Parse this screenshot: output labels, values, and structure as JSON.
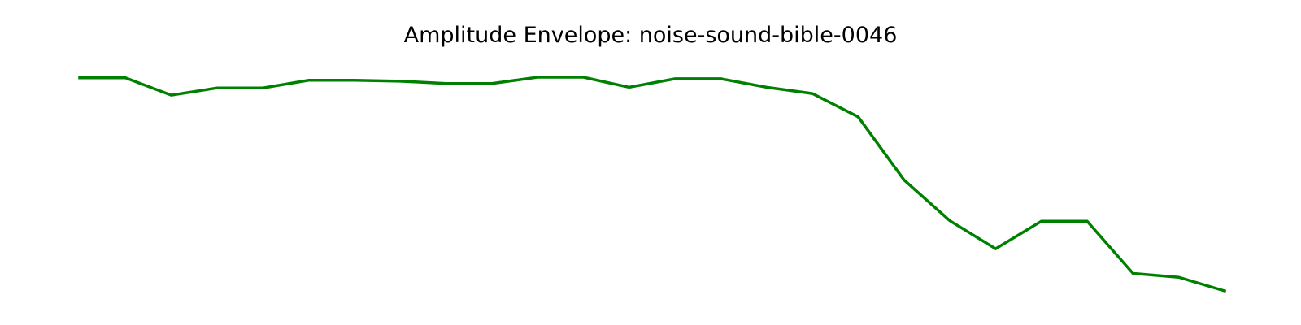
{
  "chart_data": {
    "type": "line",
    "title": "Amplitude Envelope: noise-sound-bible-0046",
    "xlabel": "",
    "ylabel": "",
    "axes_visible": false,
    "grid": false,
    "x": [
      0,
      1,
      2,
      3,
      4,
      5,
      6,
      7,
      8,
      9,
      10,
      11,
      12,
      13,
      14,
      15,
      16,
      17,
      18,
      19,
      20,
      21,
      22,
      23,
      24,
      25
    ],
    "series": [
      {
        "color": "#008000",
        "values": [
          0.95,
          0.95,
          0.873,
          0.905,
          0.905,
          0.939,
          0.939,
          0.935,
          0.925,
          0.925,
          0.953,
          0.953,
          0.908,
          0.946,
          0.946,
          0.908,
          0.88,
          0.776,
          0.495,
          0.313,
          0.188,
          0.311,
          0.311,
          0.078,
          0.061,
          0.0
        ]
      }
    ]
  }
}
